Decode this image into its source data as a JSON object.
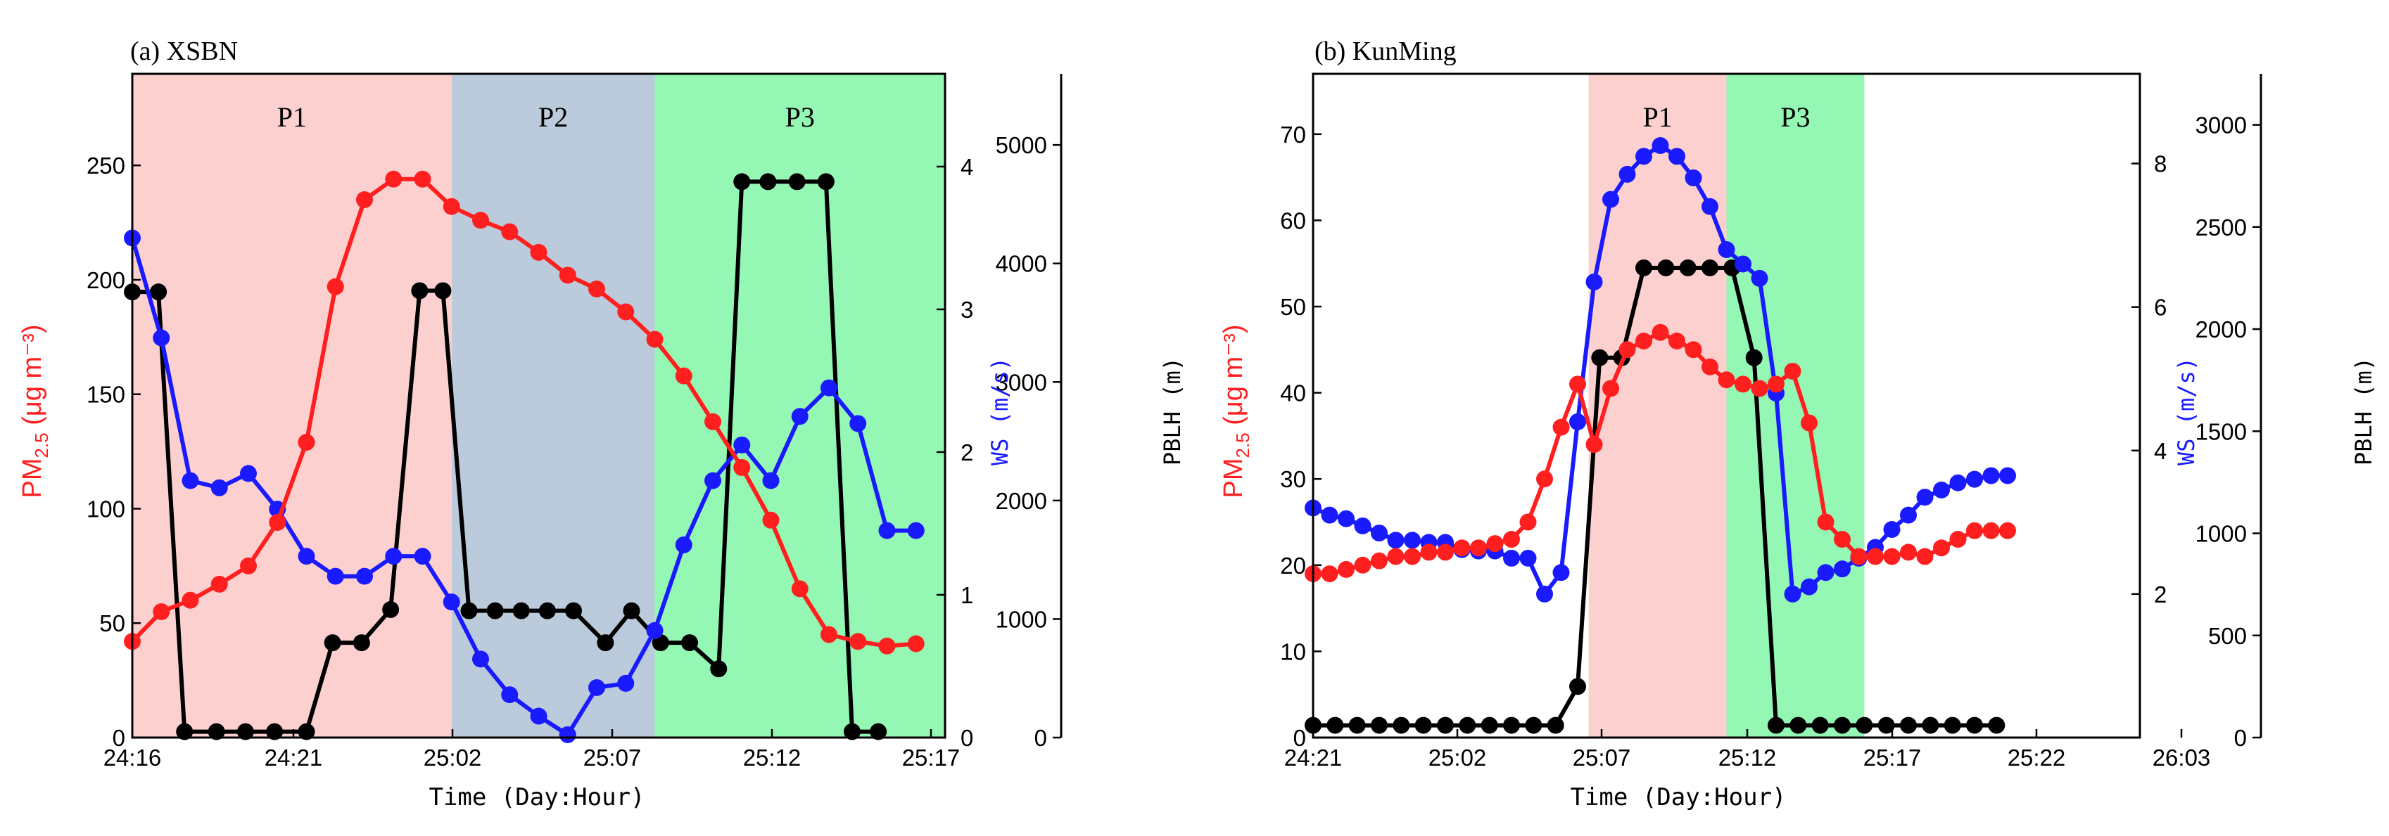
{
  "colors": {
    "pm": "#ff1f1f",
    "ws": "#1a1aff",
    "pblh": "#000000",
    "P1": "#fdd0d0",
    "P2": "#bccbdc",
    "P3": "#94f8b4"
  },
  "chart_data": [
    {
      "type": "line",
      "title": "(a) XSBN",
      "xlabel": "Time (Day:Hour)",
      "x_ticks": [
        "24:16",
        "24:21",
        "25:02",
        "25:07",
        "25:12",
        "25:17"
      ],
      "xlim": [
        0,
        28
      ],
      "periods": [
        {
          "label": "P1",
          "start": 0,
          "end": 11,
          "color": "P1"
        },
        {
          "label": "P2",
          "start": 11,
          "end": 18,
          "color": "P2"
        },
        {
          "label": "P3",
          "start": 18,
          "end": 28,
          "color": "P3"
        }
      ],
      "y_left": {
        "label_main": "PM",
        "label_sub": "2.5",
        "label_unit": " (μg m⁻³)",
        "lim": [
          0,
          290
        ],
        "ticks": [
          0,
          50,
          100,
          150,
          200,
          250
        ]
      },
      "y_right1": {
        "label": "WS (m/s)",
        "lim": [
          0,
          4.65
        ],
        "ticks": [
          0,
          1,
          2,
          3,
          4
        ]
      },
      "y_right2": {
        "label": "PBLH (m)",
        "lim": [
          0,
          5600
        ],
        "ticks": [
          0,
          1000,
          2000,
          3000,
          4000,
          5000
        ]
      },
      "series": [
        {
          "name": "PM2.5",
          "axis": "left",
          "color": "pm",
          "x": [
            0,
            1,
            2,
            3,
            4,
            5,
            6,
            7,
            8,
            9,
            10,
            11,
            12,
            13,
            14,
            15,
            16,
            17,
            18,
            19,
            20,
            21,
            22,
            23,
            24,
            25,
            26,
            27
          ],
          "values": [
            42,
            55,
            60,
            67,
            75,
            94,
            129,
            197,
            235,
            244,
            244,
            232,
            226,
            221,
            212,
            202,
            196,
            186,
            174,
            158,
            138,
            118,
            95,
            65,
            45,
            42,
            40,
            41
          ]
        },
        {
          "name": "WS",
          "axis": "right1",
          "color": "ws",
          "x": [
            0,
            1,
            2,
            3,
            4,
            5,
            6,
            7,
            8,
            9,
            10,
            11,
            12,
            13,
            14,
            15,
            16,
            17,
            18,
            19,
            20,
            21,
            22,
            23,
            24,
            25,
            26,
            27
          ],
          "values": [
            3.5,
            2.8,
            1.8,
            1.75,
            1.85,
            1.6,
            1.27,
            1.13,
            1.13,
            1.27,
            1.27,
            0.95,
            0.55,
            0.3,
            0.15,
            0.02,
            0.35,
            0.38,
            0.75,
            1.35,
            1.8,
            2.05,
            1.8,
            2.25,
            2.45,
            2.2,
            1.45,
            1.45
          ]
        },
        {
          "name": "PBLH",
          "axis": "right2",
          "color": "pblh",
          "x": [
            0,
            0.9,
            1.8,
            2.9,
            3.9,
            4.9,
            6,
            6.9,
            7.9,
            8.9,
            9.9,
            10.7,
            11.6,
            12.5,
            13.4,
            14.3,
            15.2,
            16.3,
            17.2,
            18.2,
            19.2,
            20.2,
            21,
            21.9,
            22.9,
            23.9,
            24.8,
            25.7
          ],
          "values": [
            3760,
            3760,
            50,
            50,
            50,
            50,
            50,
            800,
            800,
            1080,
            3770,
            3770,
            1070,
            1070,
            1070,
            1070,
            1070,
            800,
            1070,
            800,
            800,
            580,
            4690,
            4690,
            4690,
            4690,
            50,
            50
          ]
        }
      ]
    },
    {
      "type": "line",
      "title": "(b) KunMing",
      "xlabel": "Time (Day:Hour)",
      "x_ticks": [
        "24:21",
        "25:02",
        "25:07",
        "25:12",
        "25:17",
        "25:22",
        "26:03"
      ],
      "xlim": [
        0,
        30
      ],
      "periods": [
        {
          "label": "P1",
          "start": 10,
          "end": 15,
          "color": "P1"
        },
        {
          "label": "P3",
          "start": 15,
          "end": 20,
          "color": "P3"
        }
      ],
      "y_left": {
        "label_main": "PM",
        "label_sub": "2.5",
        "label_unit": " (μg m⁻³)",
        "lim": [
          0,
          77
        ],
        "ticks": [
          0,
          10,
          20,
          30,
          40,
          50,
          60,
          70
        ]
      },
      "y_right1": {
        "label": "WS (m/s)",
        "lim": [
          0,
          9.25
        ],
        "ticks": [
          2,
          4,
          6,
          8
        ]
      },
      "y_right2": {
        "label": "PBLH (m)",
        "lim": [
          0,
          3250
        ],
        "ticks": [
          0,
          500,
          1000,
          1500,
          2000,
          2500,
          3000
        ]
      },
      "series": [
        {
          "name": "PM2.5",
          "axis": "left",
          "color": "pm",
          "x": [
            0,
            0.6,
            1.2,
            1.8,
            2.4,
            3,
            3.6,
            4.2,
            4.8,
            5.4,
            6,
            6.6,
            7.2,
            7.8,
            8.4,
            9,
            9.6,
            10.2,
            10.8,
            11.4,
            12,
            12.6,
            13.2,
            13.8,
            14.4,
            15,
            15.6,
            16.2,
            16.8,
            17.4,
            18,
            18.6,
            19.2,
            19.8,
            20.4,
            21,
            21.6,
            22.2,
            22.8,
            23.4,
            24,
            24.6,
            25.2
          ],
          "values": [
            19,
            19,
            19.5,
            20,
            20.5,
            21,
            21,
            21.5,
            21.5,
            22,
            22,
            22.5,
            23,
            25,
            30,
            36,
            41,
            34,
            40.5,
            45,
            46,
            47,
            46,
            45,
            43,
            41.5,
            41,
            40.5,
            41,
            42.5,
            36.5,
            25,
            23,
            21,
            21,
            21,
            21.5,
            21,
            22,
            23,
            24,
            24,
            24
          ]
        },
        {
          "name": "WS",
          "axis": "right1",
          "color": "ws",
          "x": [
            0,
            0.6,
            1.2,
            1.8,
            2.4,
            3,
            3.6,
            4.2,
            4.8,
            5.4,
            6,
            6.6,
            7.2,
            7.8,
            8.4,
            9,
            9.6,
            10.2,
            10.8,
            11.4,
            12,
            12.6,
            13.2,
            13.8,
            14.4,
            15,
            15.6,
            16.2,
            16.8,
            17.4,
            18,
            18.6,
            19.2,
            19.8,
            20.4,
            21,
            21.6,
            22.2,
            22.8,
            23.4,
            24,
            24.6,
            25.2
          ],
          "values": [
            3.2,
            3.1,
            3.05,
            2.95,
            2.85,
            2.75,
            2.75,
            2.72,
            2.72,
            2.62,
            2.6,
            2.6,
            2.5,
            2.5,
            2.0,
            2.3,
            4.4,
            6.35,
            7.5,
            7.85,
            8.1,
            8.25,
            8.1,
            7.8,
            7.4,
            6.8,
            6.6,
            6.4,
            4.8,
            2.0,
            2.1,
            2.3,
            2.35,
            2.5,
            2.65,
            2.9,
            3.1,
            3.35,
            3.45,
            3.55,
            3.6,
            3.65,
            3.65
          ]
        },
        {
          "name": "PBLH",
          "axis": "right2",
          "color": "pblh",
          "x": [
            0,
            0.8,
            1.6,
            2.4,
            3.2,
            4,
            4.8,
            5.6,
            6.4,
            7.2,
            8,
            8.8,
            9.6,
            10.4,
            11.2,
            12,
            12.8,
            13.6,
            14.4,
            15.2,
            16,
            16.8,
            17.6,
            18.4,
            19.2,
            20,
            20.8,
            21.6,
            22.4,
            23.2,
            24,
            24.8
          ],
          "values": [
            60,
            60,
            60,
            60,
            60,
            60,
            60,
            60,
            60,
            60,
            60,
            60,
            250,
            1860,
            1860,
            2300,
            2300,
            2300,
            2300,
            2300,
            1860,
            60,
            60,
            60,
            60,
            60,
            60,
            60,
            60,
            60,
            60,
            60
          ]
        }
      ]
    }
  ]
}
